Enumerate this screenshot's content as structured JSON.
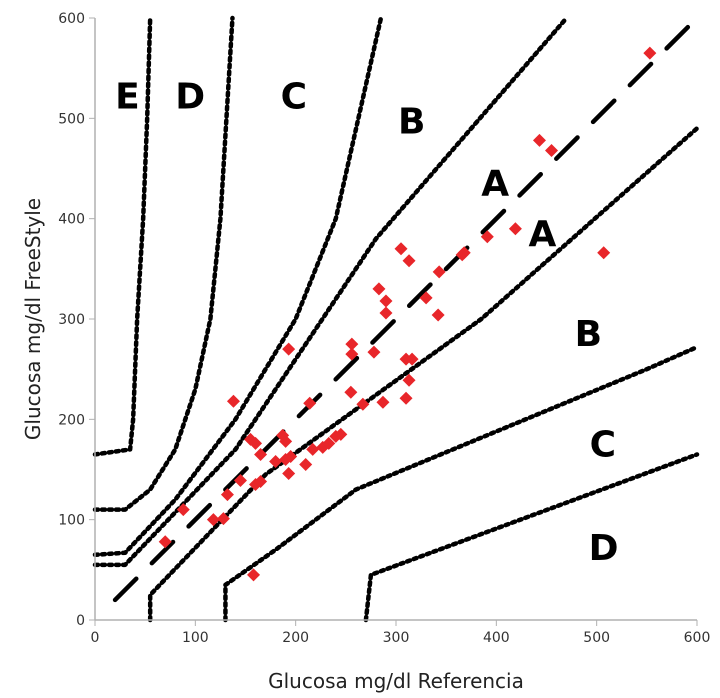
{
  "chart_data": {
    "type": "scatter",
    "title": "",
    "xlabel": "Glucosa mg/dl Referencia",
    "ylabel": "Glucosa mg/dl FreeStyle",
    "xlim": [
      0,
      600
    ],
    "ylim": [
      0,
      600
    ],
    "xticks": [
      "0",
      "100",
      "200",
      "300",
      "400",
      "500",
      "600"
    ],
    "yticks": [
      "0",
      "100",
      "200",
      "300",
      "400",
      "500",
      "600"
    ],
    "grid": false,
    "point_color": "#e8262a",
    "marker": "diamond",
    "points": [
      [
        553,
        565
      ],
      [
        443,
        478
      ],
      [
        455,
        468
      ],
      [
        419,
        390
      ],
      [
        391,
        382
      ],
      [
        368,
        366
      ],
      [
        366,
        364
      ],
      [
        507,
        366
      ],
      [
        305,
        370
      ],
      [
        313,
        358
      ],
      [
        343,
        347
      ],
      [
        283,
        330
      ],
      [
        290,
        318
      ],
      [
        290,
        306
      ],
      [
        330,
        321
      ],
      [
        342,
        304
      ],
      [
        256,
        275
      ],
      [
        256,
        265
      ],
      [
        278,
        267
      ],
      [
        310,
        260
      ],
      [
        316,
        260
      ],
      [
        313,
        239
      ],
      [
        310,
        221
      ],
      [
        287,
        217
      ],
      [
        255,
        227
      ],
      [
        267,
        215
      ],
      [
        193,
        270
      ],
      [
        138,
        218
      ],
      [
        214,
        216
      ],
      [
        155,
        180
      ],
      [
        160,
        176
      ],
      [
        187,
        184
      ],
      [
        190,
        178
      ],
      [
        165,
        165
      ],
      [
        190,
        160
      ],
      [
        195,
        163
      ],
      [
        180,
        158
      ],
      [
        193,
        146
      ],
      [
        210,
        155
      ],
      [
        217,
        170
      ],
      [
        227,
        172
      ],
      [
        233,
        176
      ],
      [
        240,
        183
      ],
      [
        245,
        185
      ],
      [
        145,
        139
      ],
      [
        132,
        125
      ],
      [
        160,
        135
      ],
      [
        165,
        138
      ],
      [
        118,
        100
      ],
      [
        128,
        101
      ],
      [
        88,
        110
      ],
      [
        70,
        78
      ],
      [
        158,
        45
      ]
    ],
    "identity_line": [
      [
        20,
        20
      ],
      [
        600,
        600
      ]
    ],
    "zone_boundaries": [
      {
        "zone": "A-upper",
        "points": [
          [
            0,
            55
          ],
          [
            30,
            55
          ],
          [
            140,
            170
          ],
          [
            280,
            380
          ],
          [
            470,
            600
          ]
        ]
      },
      {
        "zone": "B-upper",
        "points": [
          [
            0,
            65
          ],
          [
            30,
            67
          ],
          [
            80,
            120
          ],
          [
            140,
            200
          ],
          [
            200,
            300
          ],
          [
            240,
            400
          ],
          [
            285,
            600
          ]
        ]
      },
      {
        "zone": "C-upper",
        "points": [
          [
            0,
            110
          ],
          [
            30,
            110
          ],
          [
            55,
            130
          ],
          [
            80,
            170
          ],
          [
            100,
            230
          ],
          [
            115,
            300
          ],
          [
            125,
            400
          ],
          [
            137,
            600
          ]
        ]
      },
      {
        "zone": "D-upper",
        "points": [
          [
            0,
            165
          ],
          [
            35,
            170
          ],
          [
            38,
            200
          ],
          [
            42,
            300
          ],
          [
            48,
            400
          ],
          [
            52,
            500
          ],
          [
            55,
            600
          ]
        ]
      },
      {
        "zone": "A-lower",
        "points": [
          [
            55,
            0
          ],
          [
            55,
            25
          ],
          [
            170,
            145
          ],
          [
            385,
            300
          ],
          [
            600,
            490
          ]
        ]
      },
      {
        "zone": "B-lower",
        "points": [
          [
            130,
            0
          ],
          [
            130,
            35
          ],
          [
            180,
            70
          ],
          [
            260,
            130
          ],
          [
            550,
            250
          ],
          [
            600,
            272
          ]
        ]
      },
      {
        "zone": "C-lower",
        "points": [
          [
            270,
            0
          ],
          [
            275,
            45
          ],
          [
            600,
            165
          ]
        ]
      }
    ],
    "zone_labels": [
      {
        "text": "E",
        "x": 20,
        "y": 510
      },
      {
        "text": "D",
        "x": 80,
        "y": 510
      },
      {
        "text": "C",
        "x": 185,
        "y": 510
      },
      {
        "text": "B",
        "x": 302,
        "y": 485
      },
      {
        "text": "A",
        "x": 385,
        "y": 423
      },
      {
        "text": "A",
        "x": 432,
        "y": 373
      },
      {
        "text": "B",
        "x": 478,
        "y": 273
      },
      {
        "text": "C",
        "x": 493,
        "y": 163
      },
      {
        "text": "D",
        "x": 492,
        "y": 60
      }
    ]
  }
}
